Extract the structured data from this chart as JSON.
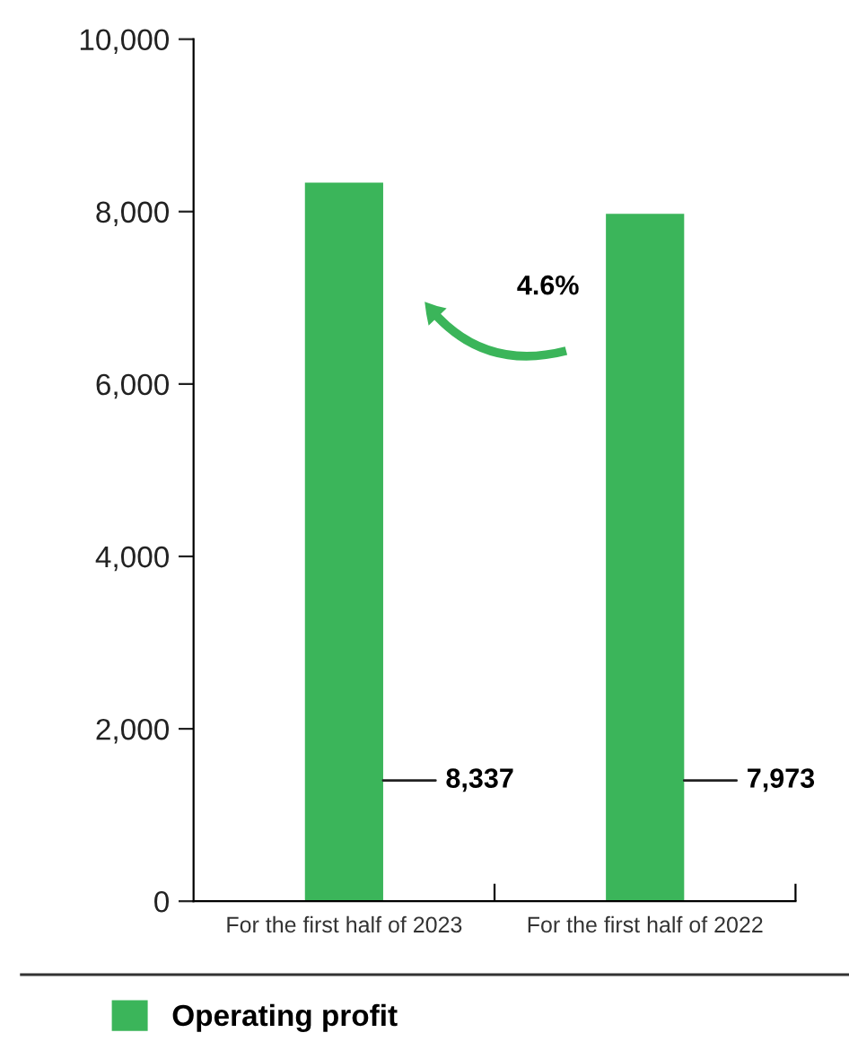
{
  "chart_data": {
    "type": "bar",
    "categories": [
      "For the first half of 2023",
      "For the first half of 2022"
    ],
    "series": [
      {
        "name": "Operating profit",
        "color": "#3bb55a",
        "values": [
          8337,
          7973
        ],
        "value_labels": [
          "8,337",
          "7,973"
        ]
      }
    ],
    "ylim": [
      0,
      10000
    ],
    "yticks": [
      {
        "value": 0,
        "label": "0"
      },
      {
        "value": 2000,
        "label": "2,000"
      },
      {
        "value": 4000,
        "label": "4,000"
      },
      {
        "value": 6000,
        "label": "6,000"
      },
      {
        "value": 8000,
        "label": "8,000"
      },
      {
        "value": 10000,
        "label": "10,000"
      }
    ],
    "annotations": [
      "4.6%"
    ],
    "legend": "bottom left",
    "grid": false
  }
}
